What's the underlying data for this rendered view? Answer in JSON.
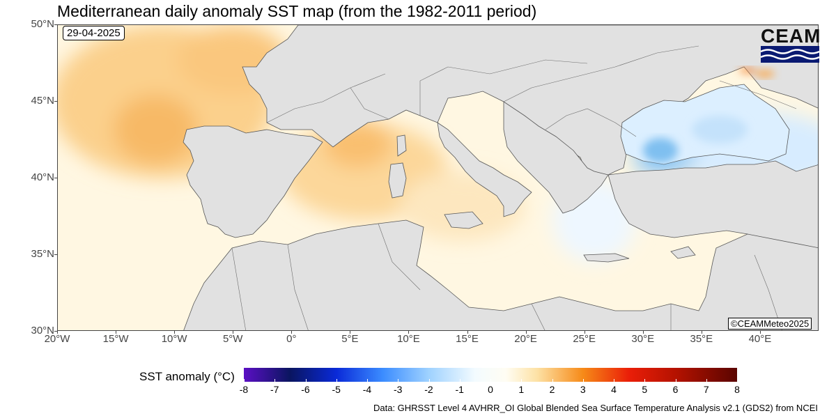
{
  "title": "Mediterranean daily anomaly SST map (from the 1982-2011 period)",
  "date": "29-04-2025",
  "logo": {
    "text": "CEAM",
    "wave_color": "#0a1a72"
  },
  "copyright": "©CEAMMeteo2025",
  "map": {
    "lon_range": [
      -20,
      45
    ],
    "lat_range": [
      30,
      50
    ],
    "land_color": "#e1e1e1",
    "lat_ticks": [
      {
        "label": "50°N",
        "value": 50
      },
      {
        "label": "45°N",
        "value": 45
      },
      {
        "label": "40°N",
        "value": 40
      },
      {
        "label": "35°N",
        "value": 35
      },
      {
        "label": "30°N",
        "value": 30
      }
    ],
    "lon_ticks": [
      {
        "label": "20°W",
        "value": -20
      },
      {
        "label": "15°W",
        "value": -15
      },
      {
        "label": "10°W",
        "value": -10
      },
      {
        "label": "5°W",
        "value": -5
      },
      {
        "label": "0°",
        "value": 0
      },
      {
        "label": "5°E",
        "value": 5
      },
      {
        "label": "10°E",
        "value": 10
      },
      {
        "label": "15°E",
        "value": 15
      },
      {
        "label": "20°E",
        "value": 20
      },
      {
        "label": "25°E",
        "value": 25
      },
      {
        "label": "30°E",
        "value": 30
      },
      {
        "label": "35°E",
        "value": 35
      },
      {
        "label": "40°E",
        "value": 40
      }
    ]
  },
  "colorbar": {
    "title": "SST anomaly (°C)",
    "range": [
      -8,
      8
    ],
    "ticks": [
      "-8",
      "-7",
      "-6",
      "-5",
      "-4",
      "-3",
      "-2",
      "-1",
      "0",
      "1",
      "2",
      "3",
      "4",
      "5",
      "6",
      "7",
      "8"
    ],
    "stops": [
      {
        "value": -8,
        "color": "#5b0fc4"
      },
      {
        "value": -6.5,
        "color": "#0a1560"
      },
      {
        "value": -5,
        "color": "#0a2ad8"
      },
      {
        "value": -3.5,
        "color": "#3b8cff"
      },
      {
        "value": -2,
        "color": "#9fd2ff"
      },
      {
        "value": -0.5,
        "color": "#f3fbff"
      },
      {
        "value": 0.5,
        "color": "#fffdf3"
      },
      {
        "value": 1.5,
        "color": "#fde2a6"
      },
      {
        "value": 3,
        "color": "#f68a18"
      },
      {
        "value": 4.5,
        "color": "#ea1e08"
      },
      {
        "value": 6,
        "color": "#b51200"
      },
      {
        "value": 8,
        "color": "#5a0500"
      }
    ]
  },
  "source": "Data: GHRSST Level 4 AVHRR_OI Global Blended Sea Surface Temperature Analysis v2.1 (GDS2) from NCEI"
}
